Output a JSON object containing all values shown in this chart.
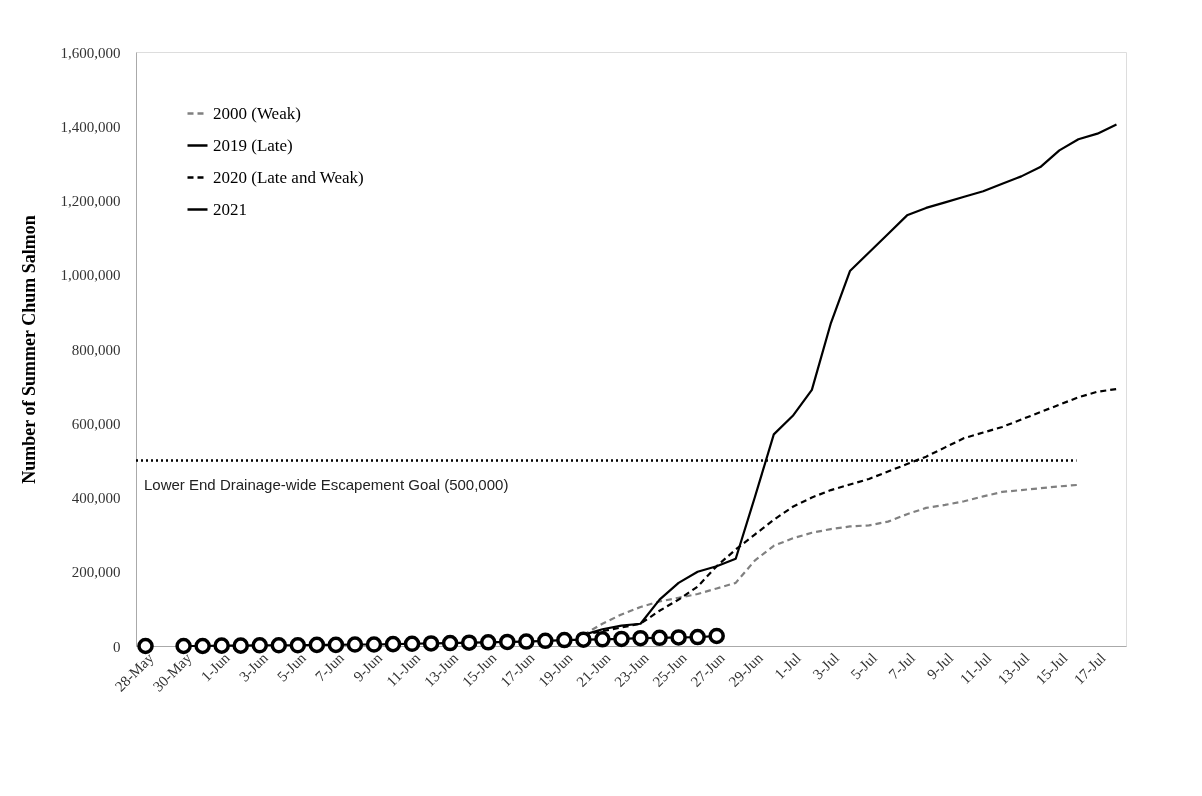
{
  "chart_data": {
    "type": "line",
    "ylabel": "Number of Summer Chum Salmon",
    "categories": [
      "28-May",
      null,
      "30-May",
      null,
      "1-Jun",
      null,
      "3-Jun",
      null,
      "5-Jun",
      null,
      "7-Jun",
      null,
      "9-Jun",
      null,
      "11-Jun",
      null,
      "13-Jun",
      null,
      "15-Jun",
      null,
      "17-Jun",
      null,
      "19-Jun",
      null,
      "21-Jun",
      null,
      "23-Jun",
      null,
      "25-Jun",
      null,
      "27-Jun",
      null,
      "29-Jun",
      null,
      "1-Jul",
      null,
      "3-Jul",
      null,
      "5-Jul",
      null,
      "7-Jul",
      null,
      "9-Jul",
      null,
      "11-Jul",
      null,
      "13-Jul",
      null,
      "15-Jul",
      null,
      "17-Jul",
      null
    ],
    "series": [
      {
        "name": "2000 (Weak)",
        "color": "#808080",
        "line_style": "dashed",
        "marker": "none",
        "values": [
          null,
          null,
          null,
          null,
          null,
          null,
          null,
          null,
          null,
          null,
          null,
          null,
          null,
          null,
          null,
          null,
          null,
          null,
          null,
          null,
          null,
          null,
          null,
          30000,
          60000,
          85000,
          105000,
          120000,
          130000,
          140000,
          155000,
          170000,
          230000,
          270000,
          290000,
          305000,
          315000,
          322000,
          325000,
          335000,
          355000,
          372000,
          380000,
          390000,
          403000,
          415000,
          420000,
          425000,
          430000,
          434000,
          null,
          null
        ]
      },
      {
        "name": "2019 (Late)",
        "color": "#000000",
        "line_style": "solid",
        "marker": "none",
        "values": [
          null,
          null,
          null,
          null,
          null,
          null,
          null,
          null,
          null,
          null,
          null,
          null,
          null,
          null,
          null,
          null,
          null,
          null,
          null,
          null,
          null,
          null,
          null,
          30000,
          45000,
          55000,
          60000,
          125000,
          170000,
          200000,
          215000,
          235000,
          400000,
          570000,
          620000,
          690000,
          870000,
          1010000,
          1060000,
          1110000,
          1160000,
          1180000,
          1195000,
          1210000,
          1225000,
          1245000,
          1265000,
          1290000,
          1335000,
          1365000,
          1380000,
          1405000
        ]
      },
      {
        "name": "2020 (Late and Weak)",
        "color": "#000000",
        "line_style": "dashed",
        "marker": "none",
        "values": [
          null,
          null,
          null,
          null,
          null,
          null,
          null,
          null,
          null,
          null,
          null,
          null,
          null,
          null,
          null,
          null,
          null,
          null,
          null,
          null,
          null,
          null,
          null,
          30000,
          40000,
          50000,
          60000,
          95000,
          125000,
          160000,
          215000,
          260000,
          300000,
          340000,
          375000,
          400000,
          420000,
          435000,
          450000,
          470000,
          490000,
          510000,
          535000,
          560000,
          575000,
          590000,
          610000,
          630000,
          650000,
          670000,
          685000,
          692000
        ]
      },
      {
        "name": "2021",
        "color": "#000000",
        "line_style": "solid",
        "marker": "circle",
        "values": [
          0,
          null,
          0,
          0,
          1000,
          1000,
          2000,
          2000,
          2000,
          3000,
          3000,
          4000,
          4000,
          5000,
          6000,
          7000,
          8000,
          9000,
          10000,
          11000,
          12000,
          14000,
          16000,
          17000,
          18000,
          19000,
          21000,
          22000,
          23000,
          24000,
          27000,
          null,
          null,
          null,
          null,
          null,
          null,
          null,
          null,
          null,
          null,
          null,
          null,
          null,
          null,
          null,
          null,
          null,
          null,
          null,
          null,
          null
        ]
      }
    ],
    "ylim": [
      0,
      1600000
    ],
    "yticks": [
      0,
      {
        "value": 200000,
        "label": "200,000"
      },
      {
        "value": 400000,
        "label": "400,000"
      },
      {
        "value": 600000,
        "label": "600,000"
      },
      {
        "value": 800000,
        "label": "800,000"
      },
      {
        "value": 1000000,
        "label": "1,000,000"
      },
      {
        "value": 1200000,
        "label": "1,200,000"
      },
      {
        "value": 1400000,
        "label": "1,400,000"
      },
      {
        "value": 1600000,
        "label": "1,600,000"
      }
    ],
    "ref_lines": [
      {
        "axis": "y",
        "value": 500000,
        "label": "Lower End Drainage-wide Escapement Goal (500,000)",
        "line_style": "dotted",
        "color": "#000000"
      }
    ],
    "grid": false,
    "legend": "top left"
  }
}
